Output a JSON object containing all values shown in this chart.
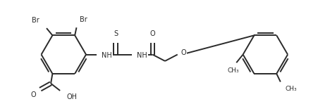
{
  "bg_color": "#ffffff",
  "line_color": "#2a2a2a",
  "line_width": 1.4,
  "font_size": 7.0,
  "fig_width": 4.68,
  "fig_height": 1.58,
  "dpi": 100,
  "xlim": [
    0,
    10
  ],
  "ylim": [
    0,
    3.38
  ]
}
